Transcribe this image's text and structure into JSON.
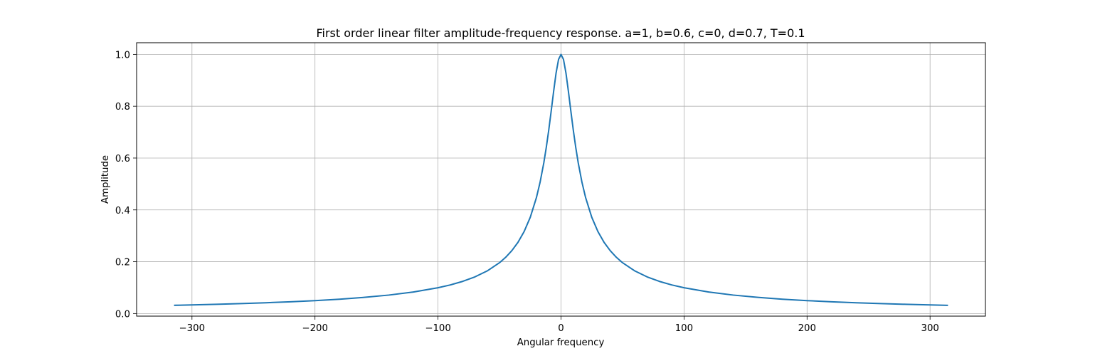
{
  "chart_data": {
    "type": "line",
    "title": "First order linear filter amplitude-frequency response. a=1, b=0.6, c=0, d=0.7, T=0.1",
    "xlabel": "Angular frequency",
    "ylabel": "Amplitude",
    "xlim": [
      -345,
      345
    ],
    "ylim": [
      -0.01,
      1.045
    ],
    "xticks": [
      -300,
      -200,
      -100,
      0,
      100,
      200,
      300
    ],
    "xtick_labels": [
      "−300",
      "−200",
      "−100",
      "0",
      "100",
      "200",
      "300"
    ],
    "yticks": [
      0.0,
      0.2,
      0.4,
      0.6,
      0.8,
      1.0
    ],
    "ytick_labels": [
      "0.0",
      "0.2",
      "0.4",
      "0.6",
      "0.8",
      "1.0"
    ],
    "grid": true,
    "series": [
      {
        "color": "#1f77b4",
        "x": [
          -314,
          -300,
          -280,
          -260,
          -240,
          -220,
          -200,
          -180,
          -160,
          -140,
          -120,
          -100,
          -90,
          -80,
          -70,
          -60,
          -50,
          -45,
          -40,
          -35,
          -30,
          -25,
          -20,
          -17,
          -14,
          -12,
          -10,
          -8,
          -6,
          -4,
          -2,
          0,
          2,
          4,
          6,
          8,
          10,
          12,
          14,
          17,
          20,
          25,
          30,
          35,
          40,
          45,
          50,
          60,
          70,
          80,
          90,
          100,
          120,
          140,
          160,
          180,
          200,
          220,
          240,
          260,
          280,
          300,
          314
        ],
        "y": [
          0.0318,
          0.0333,
          0.0357,
          0.0385,
          0.0416,
          0.0454,
          0.0499,
          0.0554,
          0.0623,
          0.0712,
          0.083,
          0.0995,
          0.1104,
          0.124,
          0.1414,
          0.1644,
          0.1961,
          0.2169,
          0.2425,
          0.2747,
          0.3162,
          0.3714,
          0.4472,
          0.507,
          0.5812,
          0.6402,
          0.7071,
          0.7809,
          0.8575,
          0.9285,
          0.9806,
          1.0,
          0.9806,
          0.9285,
          0.8575,
          0.7809,
          0.7071,
          0.6402,
          0.5812,
          0.507,
          0.4472,
          0.3714,
          0.3162,
          0.2747,
          0.2425,
          0.2169,
          0.1961,
          0.1644,
          0.1414,
          0.124,
          0.1104,
          0.0995,
          0.083,
          0.0712,
          0.0623,
          0.0554,
          0.0499,
          0.0454,
          0.0416,
          0.0385,
          0.0357,
          0.0333,
          0.0318
        ]
      }
    ]
  }
}
